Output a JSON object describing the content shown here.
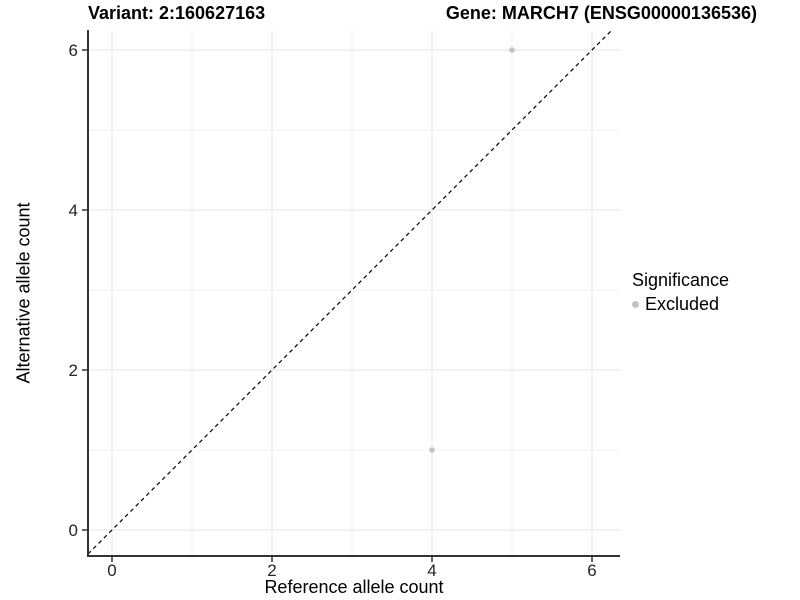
{
  "chart_data": {
    "type": "scatter",
    "titles": {
      "left": "Variant: 2:160627163",
      "right": "Gene: MARCH7 (ENSG00000136536)"
    },
    "xlabel": "Reference allele count",
    "ylabel": "Alternative allele count",
    "xlim": [
      -0.3,
      6.35
    ],
    "ylim": [
      -0.325,
      6.25
    ],
    "x_ticks": {
      "major": [
        0,
        2,
        4,
        6
      ],
      "minor": [
        1,
        3,
        5
      ]
    },
    "y_ticks": {
      "major": [
        0,
        2,
        4,
        6
      ],
      "minor": [
        1,
        3,
        5
      ]
    },
    "grid": true,
    "points": [
      {
        "x": 5,
        "y": 6,
        "series": "Excluded"
      },
      {
        "x": 4,
        "y": 1,
        "series": "Excluded"
      }
    ],
    "point_radius": 2.8,
    "identity_line": {
      "equation": "y = x",
      "style": "dashed",
      "color": "#000000"
    },
    "legend": {
      "title": "Significance",
      "position": "right",
      "entries": [
        {
          "label": "Excluded",
          "color": "#c2c2c2"
        }
      ]
    },
    "colors": {
      "point": "#c2c2c2",
      "major_grid": "#e4e4e4",
      "minor_grid": "#f1f1f1",
      "axis_line": "#333333",
      "tick_text": "#262626"
    }
  }
}
